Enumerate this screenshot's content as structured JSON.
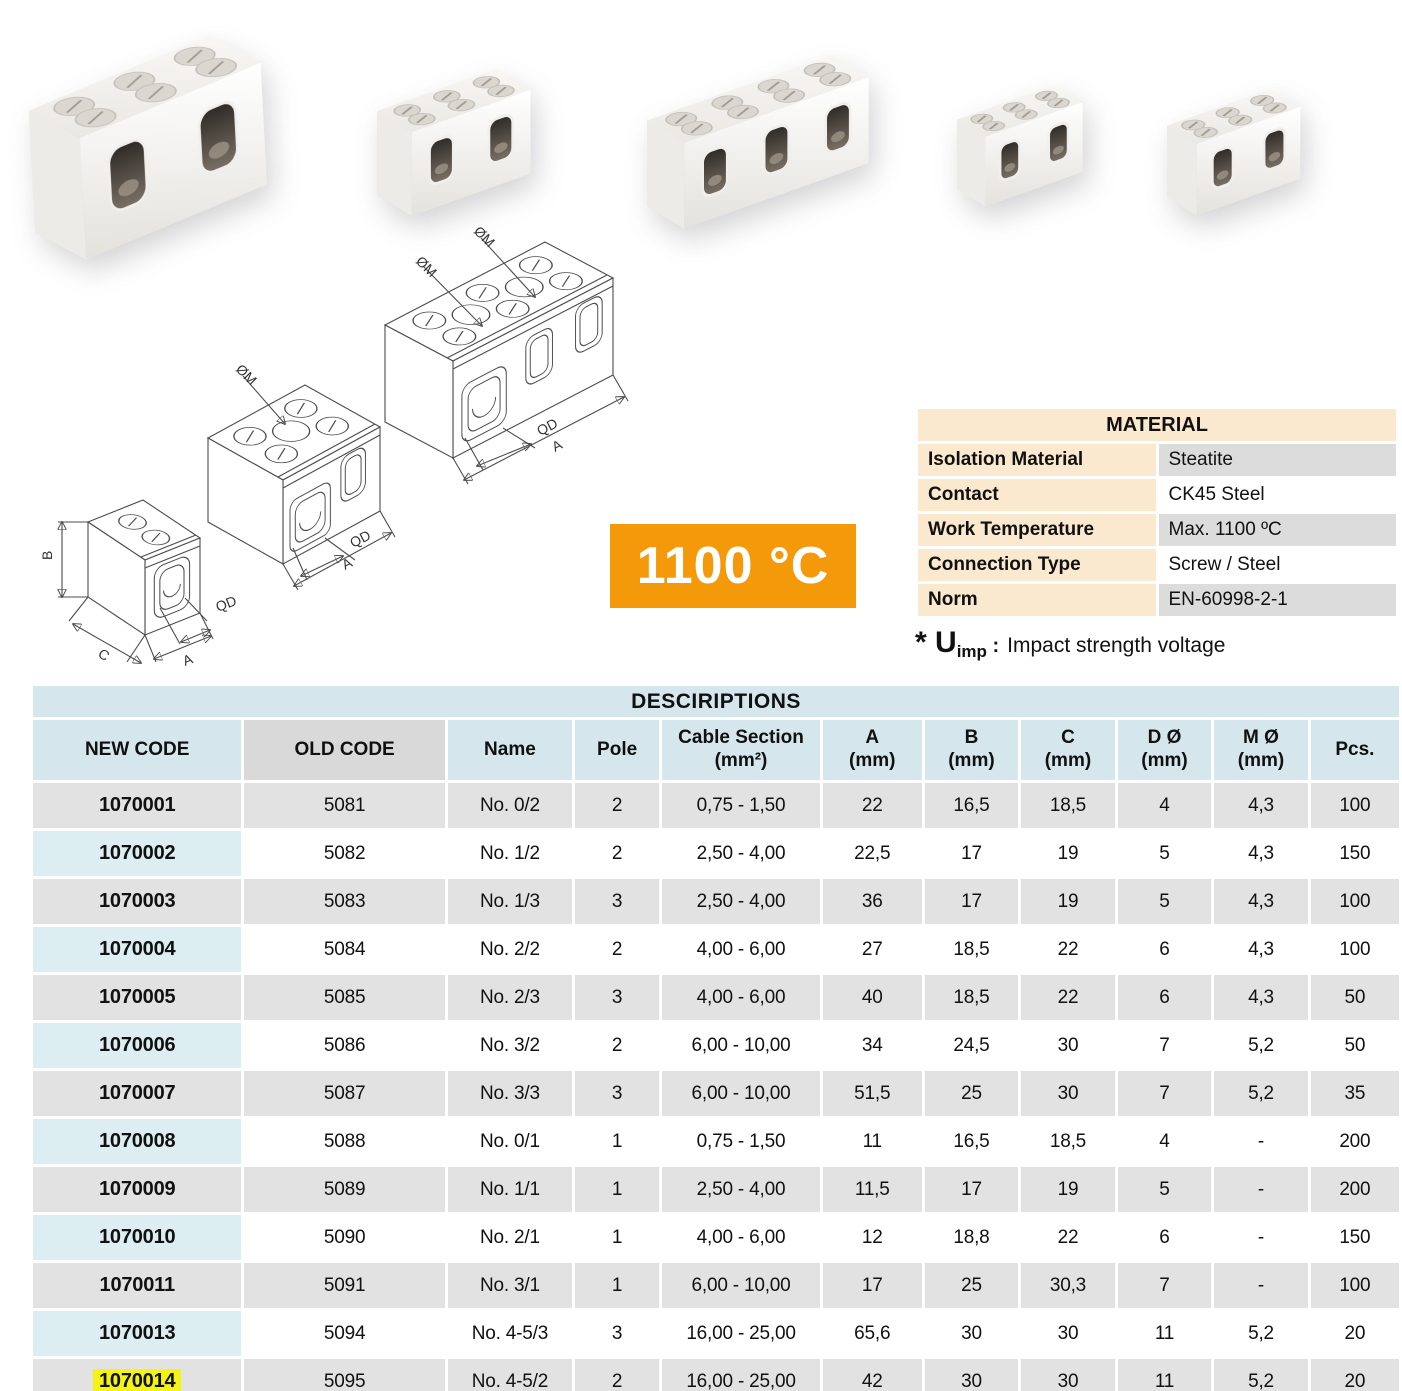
{
  "badge": {
    "text": "1100 °C"
  },
  "material": {
    "title": "MATERIAL",
    "rows": [
      {
        "label": "Isolation Material",
        "value": "Steatite"
      },
      {
        "label": "Contact",
        "value": "CK45 Steel"
      },
      {
        "label": "Work Temperature",
        "value": "Max. 1100 ºC"
      },
      {
        "label": "Connection Type",
        "value": "Screw / Steel"
      },
      {
        "label": "Norm",
        "value": "EN-60998-2-1"
      }
    ]
  },
  "uimp": {
    "prefix": "* U",
    "sub": "imp",
    "colon": " :",
    "text": "Impact strength voltage"
  },
  "drawing": {
    "labels": {
      "om": "ØM",
      "qd": "QD",
      "a": "A",
      "b": "B",
      "c": "C"
    }
  },
  "descriptions": {
    "title": "DESCIRIPTIONS",
    "columns": [
      {
        "label": "NEW CODE",
        "unit": ""
      },
      {
        "label": "OLD CODE",
        "unit": ""
      },
      {
        "label": "Name",
        "unit": ""
      },
      {
        "label": "Pole",
        "unit": ""
      },
      {
        "label": "Cable Section",
        "unit": "(mm²)"
      },
      {
        "label": "A",
        "unit": "(mm)"
      },
      {
        "label": "B",
        "unit": "(mm)"
      },
      {
        "label": "C",
        "unit": "(mm)"
      },
      {
        "label": "D Ø",
        "unit": "(mm)"
      },
      {
        "label": "M Ø",
        "unit": "(mm)"
      },
      {
        "label": "Pcs.",
        "unit": ""
      }
    ],
    "highlighted_code": "1070014",
    "rows": [
      [
        "1070001",
        "5081",
        "No. 0/2",
        "2",
        "0,75 - 1,50",
        "22",
        "16,5",
        "18,5",
        "4",
        "4,3",
        "100"
      ],
      [
        "1070002",
        "5082",
        "No. 1/2",
        "2",
        "2,50 - 4,00",
        "22,5",
        "17",
        "19",
        "5",
        "4,3",
        "150"
      ],
      [
        "1070003",
        "5083",
        "No. 1/3",
        "3",
        "2,50 - 4,00",
        "36",
        "17",
        "19",
        "5",
        "4,3",
        "100"
      ],
      [
        "1070004",
        "5084",
        "No. 2/2",
        "2",
        "4,00 - 6,00",
        "27",
        "18,5",
        "22",
        "6",
        "4,3",
        "100"
      ],
      [
        "1070005",
        "5085",
        "No. 2/3",
        "3",
        "4,00 - 6,00",
        "40",
        "18,5",
        "22",
        "6",
        "4,3",
        "50"
      ],
      [
        "1070006",
        "5086",
        "No. 3/2",
        "2",
        "6,00 - 10,00",
        "34",
        "24,5",
        "30",
        "7",
        "5,2",
        "50"
      ],
      [
        "1070007",
        "5087",
        "No. 3/3",
        "3",
        "6,00 - 10,00",
        "51,5",
        "25",
        "30",
        "7",
        "5,2",
        "35"
      ],
      [
        "1070008",
        "5088",
        "No. 0/1",
        "1",
        "0,75 - 1,50",
        "11",
        "16,5",
        "18,5",
        "4",
        "-",
        "200"
      ],
      [
        "1070009",
        "5089",
        "No. 1/1",
        "1",
        "2,50 - 4,00",
        "11,5",
        "17",
        "19",
        "5",
        "-",
        "200"
      ],
      [
        "1070010",
        "5090",
        "No. 2/1",
        "1",
        "4,00 - 6,00",
        "12",
        "18,8",
        "22",
        "6",
        "-",
        "150"
      ],
      [
        "1070011",
        "5091",
        "No. 3/1",
        "1",
        "6,00 - 10,00",
        "17",
        "25",
        "30,3",
        "7",
        "-",
        "100"
      ],
      [
        "1070013",
        "5094",
        "No. 4-5/3",
        "3",
        "16,00 - 25,00",
        "65,6",
        "30",
        "30",
        "11",
        "5,2",
        "20"
      ],
      [
        "1070014",
        "5095",
        "No. 4-5/2",
        "2",
        "16,00 - 25,00",
        "42",
        "30",
        "30",
        "11",
        "5,2",
        "20"
      ]
    ]
  },
  "colors": {
    "accent_orange": "#f49a0a",
    "header_blue": "#d5e7ed",
    "code_column_blue": "#ddeef3",
    "row_gray": "#e2e2e2",
    "material_peach": "#fbe9cf",
    "highlight_yellow": "#f3f315"
  }
}
